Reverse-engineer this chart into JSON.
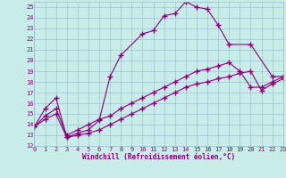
{
  "xlabel": "Windchill (Refroidissement éolien,°C)",
  "xlim": [
    0,
    23
  ],
  "ylim": [
    12,
    25.5
  ],
  "xticks": [
    0,
    1,
    2,
    3,
    4,
    5,
    6,
    7,
    8,
    9,
    10,
    11,
    12,
    13,
    14,
    15,
    16,
    17,
    18,
    19,
    20,
    21,
    22,
    23
  ],
  "yticks": [
    12,
    13,
    14,
    15,
    16,
    17,
    18,
    19,
    20,
    21,
    22,
    23,
    24,
    25
  ],
  "bg_color": "#c8ece8",
  "line_color": "#880077",
  "grid_color": "#99bbcc",
  "line1_x": [
    0,
    1,
    2,
    3,
    4,
    5,
    6,
    7,
    8,
    10,
    11,
    12,
    13,
    14,
    15,
    16,
    17,
    18,
    20,
    22,
    23
  ],
  "line1_y": [
    13.8,
    15.5,
    16.5,
    12.8,
    13.2,
    13.5,
    14.4,
    18.5,
    20.5,
    22.5,
    22.8,
    24.2,
    24.4,
    25.5,
    25.0,
    24.8,
    23.3,
    21.5,
    21.5,
    18.5,
    18.5
  ],
  "line2_x": [
    0,
    1,
    2,
    3,
    4,
    5,
    6,
    7,
    8,
    9,
    10,
    11,
    12,
    13,
    14,
    15,
    16,
    17,
    18,
    19,
    20,
    21,
    22,
    23
  ],
  "line2_y": [
    13.8,
    14.8,
    15.5,
    13.0,
    13.5,
    14.0,
    14.5,
    14.8,
    15.5,
    16.0,
    16.5,
    17.0,
    17.5,
    18.0,
    18.5,
    19.0,
    19.2,
    19.5,
    19.8,
    19.0,
    17.5,
    17.5,
    18.0,
    18.5
  ],
  "line3_x": [
    0,
    1,
    2,
    3,
    4,
    5,
    6,
    7,
    8,
    9,
    10,
    11,
    12,
    13,
    14,
    15,
    16,
    17,
    18,
    19,
    20,
    21,
    22,
    23
  ],
  "line3_y": [
    13.8,
    14.5,
    15.0,
    12.8,
    13.0,
    13.2,
    13.5,
    14.0,
    14.5,
    15.0,
    15.5,
    16.0,
    16.5,
    17.0,
    17.5,
    17.8,
    18.0,
    18.3,
    18.5,
    18.8,
    19.0,
    17.2,
    17.8,
    18.3
  ]
}
